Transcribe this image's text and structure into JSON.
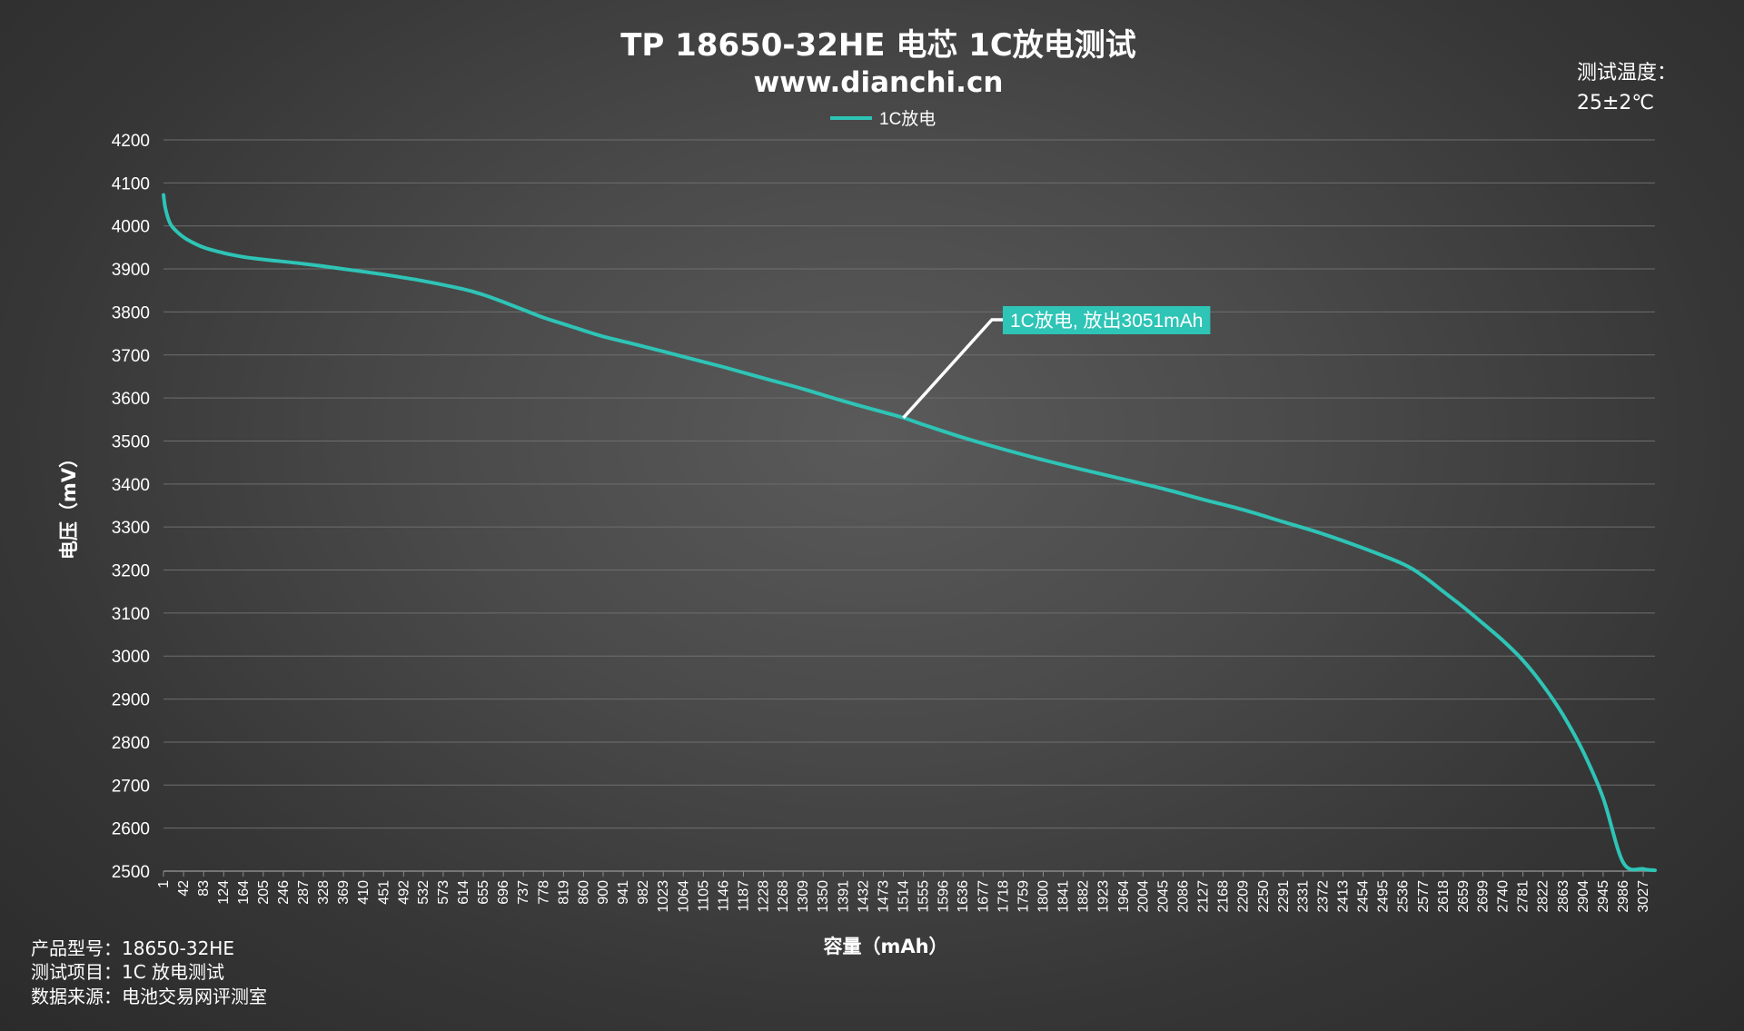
{
  "chart_data": {
    "type": "line",
    "title": "TP 18650-32HE 电芯 1C放电测试",
    "subtitle": "www.dianchi.cn",
    "xlabel": "容量（mAh）",
    "ylabel": "电压（mV）",
    "ylim": [
      2500,
      4200
    ],
    "yticks": [
      2500,
      2600,
      2700,
      2800,
      2900,
      3000,
      3100,
      3200,
      3300,
      3400,
      3500,
      3600,
      3700,
      3800,
      3900,
      4000,
      4100,
      4200
    ],
    "xlim": [
      1,
      3051
    ],
    "xticks": [
      1,
      42,
      83,
      124,
      164,
      205,
      246,
      287,
      328,
      369,
      410,
      451,
      492,
      532,
      573,
      614,
      655,
      696,
      737,
      778,
      819,
      860,
      900,
      941,
      982,
      1023,
      1064,
      1105,
      1146,
      1187,
      1228,
      1268,
      1309,
      1350,
      1391,
      1432,
      1473,
      1514,
      1555,
      1596,
      1636,
      1677,
      1718,
      1759,
      1800,
      1841,
      1882,
      1923,
      1964,
      2004,
      2045,
      2086,
      2127,
      2168,
      2209,
      2250,
      2291,
      2331,
      2372,
      2413,
      2454,
      2495,
      2536,
      2577,
      2618,
      2659,
      2699,
      2740,
      2781,
      2822,
      2863,
      2904,
      2945,
      2986,
      3027
    ],
    "grid": true,
    "legend": {
      "position": "top-center",
      "entries": [
        "1C放电"
      ]
    },
    "series": [
      {
        "name": "1C放电",
        "color": "#2ec4b6",
        "x": [
          1,
          5,
          15,
          30,
          50,
          83,
          124,
          164,
          205,
          287,
          369,
          451,
          532,
          614,
          655,
          696,
          737,
          778,
          819,
          860,
          900,
          982,
          1064,
          1146,
          1228,
          1309,
          1391,
          1473,
          1514,
          1555,
          1636,
          1718,
          1800,
          1882,
          1964,
          2045,
          2127,
          2209,
          2291,
          2372,
          2454,
          2536,
          2577,
          2618,
          2659,
          2699,
          2740,
          2781,
          2822,
          2863,
          2904,
          2945,
          2986,
          3027,
          3051
        ],
        "values": [
          4072,
          4040,
          4005,
          3985,
          3968,
          3950,
          3937,
          3928,
          3922,
          3912,
          3900,
          3887,
          3872,
          3853,
          3840,
          3823,
          3805,
          3787,
          3772,
          3757,
          3743,
          3720,
          3696,
          3672,
          3646,
          3621,
          3593,
          3567,
          3554,
          3538,
          3508,
          3481,
          3456,
          3433,
          3411,
          3389,
          3364,
          3340,
          3312,
          3284,
          3251,
          3214,
          3186,
          3150,
          3114,
          3076,
          3036,
          2990,
          2932,
          2863,
          2778,
          2670,
          2520,
          2505,
          2502
        ]
      }
    ],
    "annotation": {
      "text": "1C放电, 放出3051mAh",
      "at_x": 1514,
      "color": "#2ec4b6"
    }
  },
  "temperature": {
    "label": "测试温度：",
    "value": "25±2℃"
  },
  "info": {
    "model": "产品型号：18650-32HE",
    "test": "测试项目：1C 放电测试",
    "source": "数据来源：电池交易网评测室"
  }
}
